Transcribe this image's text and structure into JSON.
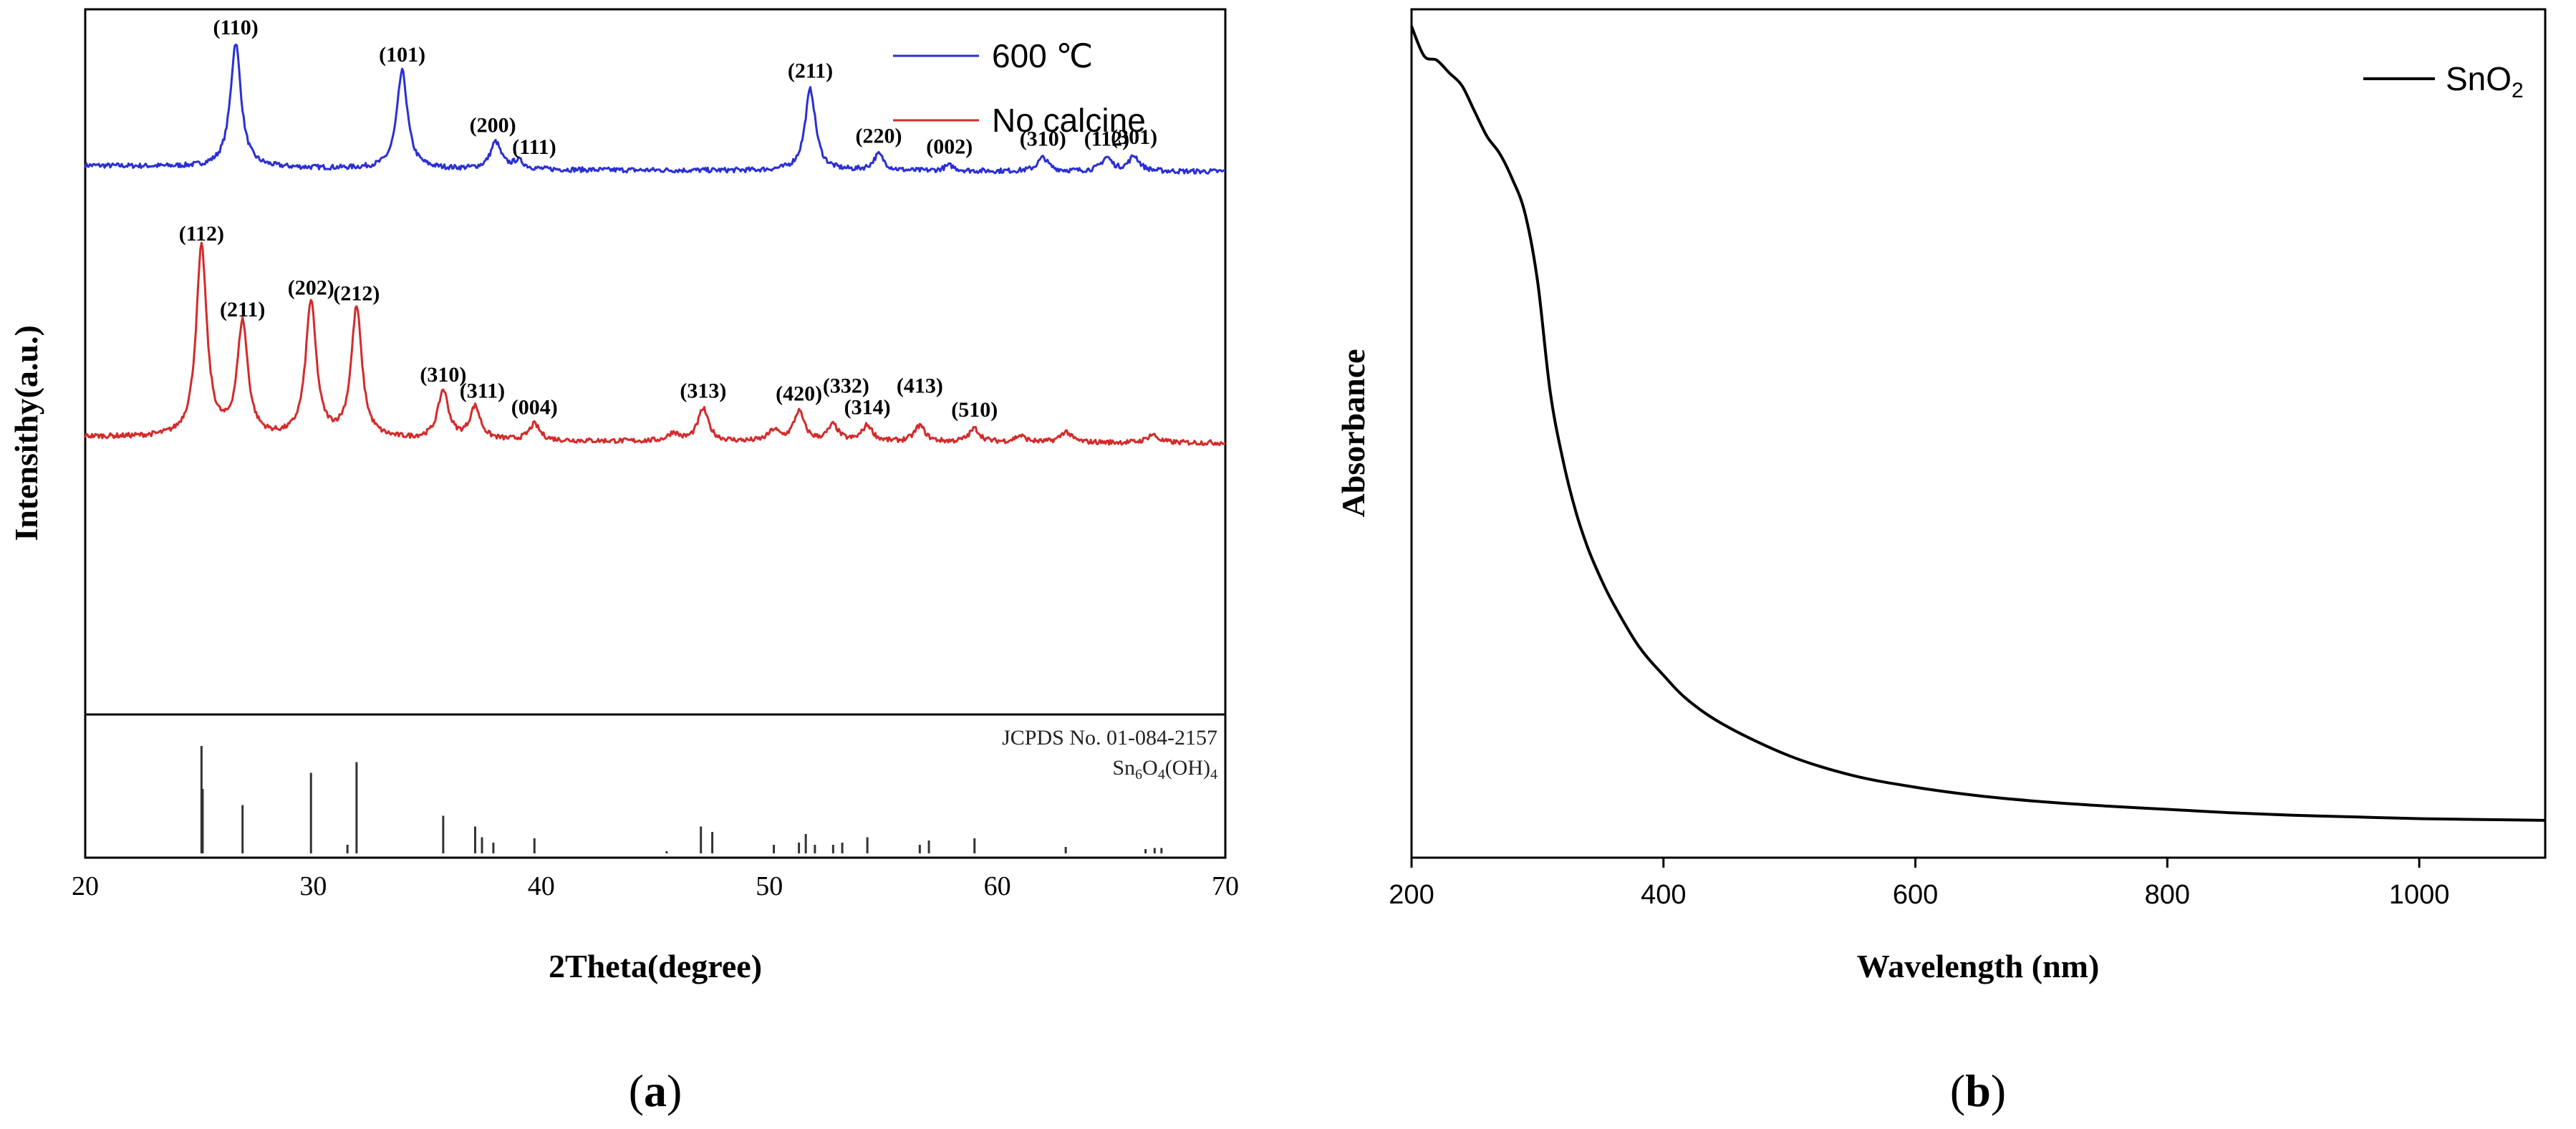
{
  "chart_data": [
    {
      "panel": "a",
      "type": "line",
      "caption": "(a)",
      "xlabel": "2Theta(degree)",
      "ylabel": "Intensithy(a.u.)",
      "xlim": [
        20,
        70
      ],
      "xticks": [
        "20",
        "30",
        "40",
        "50",
        "60",
        "70"
      ],
      "ylim": [
        0,
        130
      ],
      "series": [
        {
          "name": "600 ℃",
          "color": "#2a2fd4",
          "baseline": 100,
          "peaks": [
            {
              "x": 26.6,
              "h": 23.0,
              "label": "(110)"
            },
            {
              "x": 33.9,
              "h": 18.0,
              "label": "(101)"
            },
            {
              "x": 38.0,
              "h": 5.0,
              "label": "(200)"
            },
            {
              "x": 39.0,
              "h": 1.5,
              "label": "(111)"
            },
            {
              "x": 51.8,
              "h": 15.0,
              "label": "(211)"
            },
            {
              "x": 54.8,
              "h": 3.0,
              "label": "(220)"
            },
            {
              "x": 57.9,
              "h": 1.0,
              "label": "(002)"
            },
            {
              "x": 62.0,
              "h": 2.5,
              "label": "(310)"
            },
            {
              "x": 64.8,
              "h": 2.5,
              "label": "(112)"
            },
            {
              "x": 66.0,
              "h": 2.8,
              "label": "(301)"
            }
          ]
        },
        {
          "name": "No calcine",
          "color": "#d42a2a",
          "baseline": 50,
          "peaks": [
            {
              "x": 25.1,
              "h": 35.0,
              "label": "(112)"
            },
            {
              "x": 26.9,
              "h": 21.0,
              "label": "(211)"
            },
            {
              "x": 29.9,
              "h": 25.0,
              "label": "(202)"
            },
            {
              "x": 31.9,
              "h": 24.0,
              "label": "(212)"
            },
            {
              "x": 35.7,
              "h": 9.0,
              "label": "(310)"
            },
            {
              "x": 37.1,
              "h": 6.0,
              "label": "(311)"
            },
            {
              "x": 39.7,
              "h": 3.0,
              "label": "(004)"
            },
            {
              "x": 47.1,
              "h": 6.0,
              "label": "(313)"
            },
            {
              "x": 51.3,
              "h": 5.5,
              "label": "(420)"
            },
            {
              "x": 52.8,
              "h": 3.0,
              "label": "(332)"
            },
            {
              "x": 54.3,
              "h": 3.0,
              "label": "(314)"
            },
            {
              "x": 56.6,
              "h": 3.0,
              "label": "(413)"
            },
            {
              "x": 59.0,
              "h": 2.5,
              "label": "(510)"
            },
            {
              "x": 45.8,
              "h": 1.5,
              "label": ""
            },
            {
              "x": 50.2,
              "h": 2.0,
              "label": ""
            },
            {
              "x": 61.0,
              "h": 1.2,
              "label": ""
            },
            {
              "x": 63.0,
              "h": 2.0,
              "label": ""
            },
            {
              "x": 66.8,
              "h": 1.5,
              "label": ""
            }
          ]
        }
      ],
      "reference": {
        "title": "JCPDS No. 01-084-2157",
        "formula_main": "Sn",
        "formula_sub1": "6",
        "formula_mid": "O",
        "formula_sub2": "4",
        "formula_end": "(OH)",
        "formula_sub3": "4",
        "sticks": [
          {
            "x": 25.1,
            "h": 100
          },
          {
            "x": 25.15,
            "h": 60
          },
          {
            "x": 26.9,
            "h": 45
          },
          {
            "x": 29.9,
            "h": 75
          },
          {
            "x": 31.5,
            "h": 8
          },
          {
            "x": 31.9,
            "h": 85
          },
          {
            "x": 35.7,
            "h": 35
          },
          {
            "x": 37.1,
            "h": 25
          },
          {
            "x": 37.4,
            "h": 15
          },
          {
            "x": 37.9,
            "h": 10
          },
          {
            "x": 39.7,
            "h": 14
          },
          {
            "x": 45.5,
            "h": 2
          },
          {
            "x": 47.0,
            "h": 25
          },
          {
            "x": 47.5,
            "h": 20
          },
          {
            "x": 50.2,
            "h": 8
          },
          {
            "x": 51.3,
            "h": 10
          },
          {
            "x": 51.6,
            "h": 18
          },
          {
            "x": 52.0,
            "h": 8
          },
          {
            "x": 52.8,
            "h": 8
          },
          {
            "x": 53.2,
            "h": 10
          },
          {
            "x": 54.3,
            "h": 15
          },
          {
            "x": 56.6,
            "h": 8
          },
          {
            "x": 57.0,
            "h": 12
          },
          {
            "x": 59.0,
            "h": 14
          },
          {
            "x": 63.0,
            "h": 6
          },
          {
            "x": 66.5,
            "h": 4
          },
          {
            "x": 66.9,
            "h": 5
          },
          {
            "x": 67.2,
            "h": 5
          }
        ]
      }
    },
    {
      "panel": "b",
      "type": "line",
      "caption": "(b)",
      "xlabel": "Wavelength (nm)",
      "ylabel": "Absorbance",
      "xlim": [
        200,
        1100
      ],
      "xticks": [
        "200",
        "400",
        "600",
        "800",
        "1000"
      ],
      "ylim": [
        0,
        1.0
      ],
      "series": [
        {
          "name_main": "SnO",
          "name_sub": "2",
          "color": "#000000",
          "x": [
            200,
            210,
            220,
            230,
            240,
            250,
            260,
            270,
            280,
            290,
            300,
            310,
            320,
            330,
            340,
            350,
            360,
            380,
            400,
            420,
            450,
            500,
            550,
            600,
            650,
            700,
            750,
            800,
            850,
            900,
            950,
            1000,
            1050,
            1100
          ],
          "y": [
            0.98,
            0.945,
            0.94,
            0.925,
            0.91,
            0.88,
            0.85,
            0.83,
            0.8,
            0.76,
            0.68,
            0.55,
            0.47,
            0.41,
            0.365,
            0.33,
            0.3,
            0.25,
            0.215,
            0.185,
            0.155,
            0.12,
            0.097,
            0.083,
            0.073,
            0.066,
            0.061,
            0.057,
            0.053,
            0.05,
            0.048,
            0.046,
            0.045,
            0.044
          ]
        }
      ]
    }
  ]
}
